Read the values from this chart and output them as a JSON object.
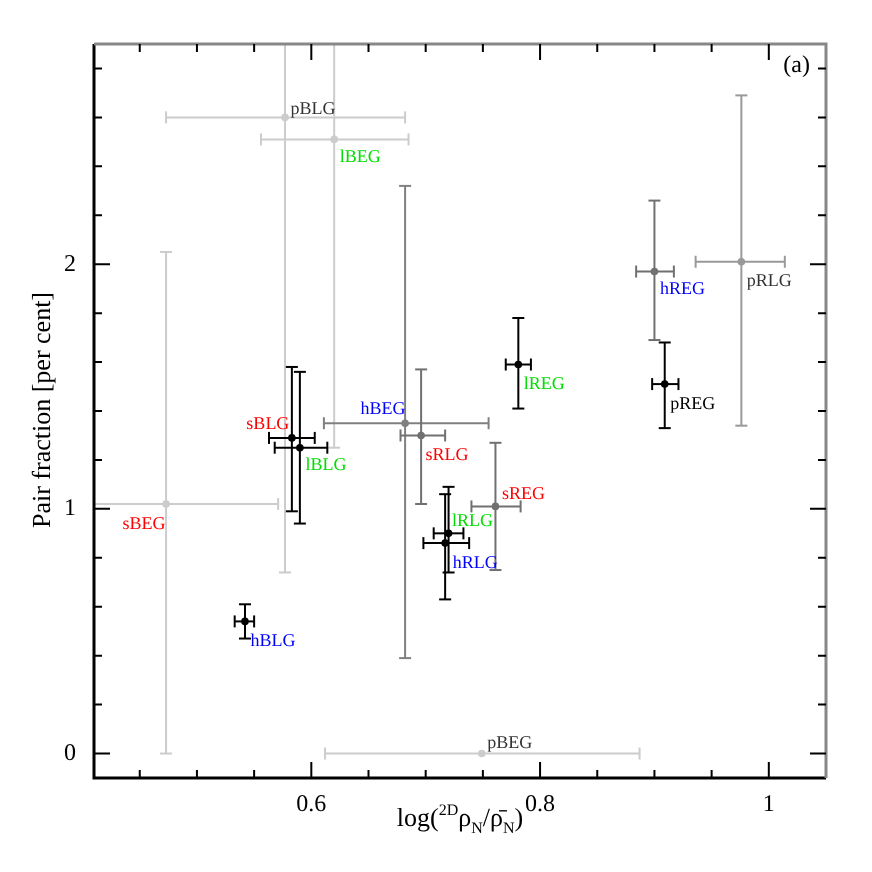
{
  "chart_data": {
    "type": "scatter",
    "xlabel": "log($^{2D}$ρ$_{N}$/ρ̄$_{N}$)",
    "ylabel": "Pair fraction [per cent]",
    "annotations": [
      "(a)"
    ],
    "xlim": [
      0.41,
      1.05
    ],
    "ylim": [
      -0.1,
      2.9
    ],
    "xticks": [
      {
        "value": 0.45,
        "label": null
      },
      {
        "value": 0.5,
        "label": null
      },
      {
        "value": 0.55,
        "label": null
      },
      0.6,
      {
        "value": 0.65,
        "label": null
      },
      {
        "value": 0.7,
        "label": null
      },
      {
        "value": 0.75,
        "label": null
      },
      0.8,
      {
        "value": 0.85,
        "label": null
      },
      {
        "value": 0.9,
        "label": null
      },
      {
        "value": 0.95,
        "label": null
      },
      1
    ],
    "yticks": [
      0,
      {
        "value": 0.2,
        "label": null
      },
      {
        "value": 0.4,
        "label": null
      },
      {
        "value": 0.6,
        "label": null
      },
      {
        "value": 0.8,
        "label": null
      },
      1,
      {
        "value": 1.2,
        "label": null
      },
      {
        "value": 1.4,
        "label": null
      },
      {
        "value": 1.6,
        "label": null
      },
      {
        "value": 1.8,
        "label": null
      },
      2,
      {
        "value": 2.2,
        "label": null
      },
      {
        "value": 2.4,
        "label": null
      },
      {
        "value": 2.6,
        "label": null
      },
      {
        "value": 2.8,
        "label": null
      }
    ],
    "marker": "circle",
    "series": [
      {
        "name": "pBLG",
        "color": "#cccccc",
        "x": [
          0.577
        ],
        "values": [
          2.6
        ],
        "xerrors": [
          [
            0.473,
            0.682
          ]
        ],
        "errors": [
          [
            0.74,
            2.9
          ]
        ]
      },
      {
        "name": "lBEG",
        "color": "#cccccc",
        "x": [
          0.62
        ],
        "values": [
          2.51
        ],
        "xerrors": [
          [
            0.556,
            0.685
          ]
        ],
        "errors": [
          [
            1.25,
            2.9
          ]
        ]
      },
      {
        "name": "sBEG",
        "color": "#cccccc",
        "x": [
          0.473
        ],
        "values": [
          1.02
        ],
        "xerrors": [
          [
            0.41,
            0.571
          ]
        ],
        "errors": [
          [
            0.0,
            2.05
          ]
        ]
      },
      {
        "name": "sBLG",
        "color": "#000000",
        "x": [
          0.583
        ],
        "values": [
          1.29
        ],
        "xerrors": [
          [
            0.563,
            0.603
          ]
        ],
        "errors": [
          [
            0.99,
            1.58
          ]
        ]
      },
      {
        "name": "lBLG",
        "color": "#000000",
        "x": [
          0.59
        ],
        "values": [
          1.25
        ],
        "xerrors": [
          [
            0.568,
            0.614
          ]
        ],
        "errors": [
          [
            0.94,
            1.56
          ]
        ]
      },
      {
        "name": "hBEG",
        "color": "#808080",
        "x": [
          0.682
        ],
        "values": [
          1.35
        ],
        "xerrors": [
          [
            0.611,
            0.755
          ]
        ],
        "errors": [
          [
            0.39,
            2.32
          ]
        ]
      },
      {
        "name": "sRLG",
        "color": "#707070",
        "x": [
          0.696
        ],
        "values": [
          1.3
        ],
        "xerrors": [
          [
            0.678,
            0.717
          ]
        ],
        "errors": [
          [
            1.02,
            1.57
          ]
        ]
      },
      {
        "name": "lREG",
        "color": "#000000",
        "x": [
          0.781
        ],
        "values": [
          1.59
        ],
        "xerrors": [
          [
            0.77,
            0.792
          ]
        ],
        "errors": [
          [
            1.41,
            1.78
          ]
        ]
      },
      {
        "name": "hREG",
        "color": "#707070",
        "x": [
          0.9
        ],
        "values": [
          1.97
        ],
        "xerrors": [
          [
            0.884,
            0.917
          ]
        ],
        "errors": [
          [
            1.69,
            2.26
          ]
        ]
      },
      {
        "name": "pREG",
        "color": "#000000",
        "x": [
          0.909
        ],
        "values": [
          1.51
        ],
        "xerrors": [
          [
            0.898,
            0.921
          ]
        ],
        "errors": [
          [
            1.33,
            1.68
          ]
        ]
      },
      {
        "name": "pRLG",
        "color": "#999999",
        "x": [
          0.976
        ],
        "values": [
          2.01
        ],
        "xerrors": [
          [
            0.936,
            1.014
          ]
        ],
        "errors": [
          [
            1.34,
            2.69
          ]
        ]
      },
      {
        "name": "sREG",
        "color": "#707070",
        "x": [
          0.761
        ],
        "values": [
          1.01
        ],
        "xerrors": [
          [
            0.74,
            0.783
          ]
        ],
        "errors": [
          [
            0.75,
            1.27
          ]
        ]
      },
      {
        "name": "lRLG",
        "color": "#000000",
        "x": [
          0.72
        ],
        "values": [
          0.9
        ],
        "xerrors": [
          [
            0.707,
            0.733
          ]
        ],
        "errors": [
          [
            0.74,
            1.09
          ]
        ]
      },
      {
        "name": "hRLG",
        "color": "#000000",
        "x": [
          0.717
        ],
        "values": [
          0.86
        ],
        "xerrors": [
          [
            0.698,
            0.738
          ]
        ],
        "errors": [
          [
            0.63,
            1.06
          ]
        ]
      },
      {
        "name": "hBLG",
        "color": "#000000",
        "x": [
          0.542
        ],
        "values": [
          0.54
        ],
        "xerrors": [
          [
            0.533,
            0.55
          ]
        ],
        "errors": [
          [
            0.47,
            0.61
          ]
        ]
      },
      {
        "name": "pBEG",
        "color": "#cccccc",
        "x": [
          0.749
        ],
        "values": [
          0.0
        ],
        "xerrors": [
          [
            0.612,
            0.887
          ]
        ],
        "errors": [
          null
        ]
      }
    ]
  }
}
